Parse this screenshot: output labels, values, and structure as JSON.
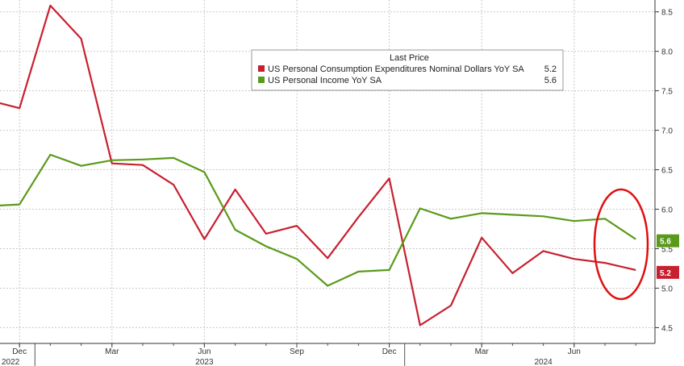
{
  "chart_data": {
    "type": "line",
    "x": [
      "2022-11",
      "2022-12",
      "2023-01",
      "2023-02",
      "2023-03",
      "2023-04",
      "2023-05",
      "2023-06",
      "2023-07",
      "2023-08",
      "2023-09",
      "2023-10",
      "2023-11",
      "2023-12",
      "2024-01",
      "2024-02",
      "2024-03",
      "2024-04",
      "2024-05",
      "2024-06",
      "2024-07",
      "2024-08"
    ],
    "x_tick_labels": [
      {
        "label": "Dec",
        "x": "2022-12"
      },
      {
        "label": "Mar",
        "x": "2023-03"
      },
      {
        "label": "Jun",
        "x": "2023-06"
      },
      {
        "label": "Sep",
        "x": "2023-09"
      },
      {
        "label": "Dec",
        "x": "2023-12"
      },
      {
        "label": "Mar",
        "x": "2024-03"
      },
      {
        "label": "Jun",
        "x": "2024-06"
      }
    ],
    "year_labels": [
      {
        "label": "2022",
        "x": "2022-11"
      },
      {
        "label": "2023",
        "x": "2023-06"
      },
      {
        "label": "2024",
        "x": "2024-05"
      }
    ],
    "y_ticks": [
      "8.5",
      "8.0",
      "7.5",
      "7.0",
      "6.5",
      "6.0",
      "5.5",
      "5.0",
      "4.5"
    ],
    "ylim": [
      4.3,
      8.65
    ],
    "axis_side": "right",
    "grid": true,
    "legend_title": "Last Price",
    "series": [
      {
        "name": "US Personal Consumption Expenditures Nominal Dollars YoY SA",
        "last": "5.2",
        "color": "#c8202f",
        "values": [
          7.38,
          7.28,
          8.58,
          8.16,
          6.58,
          6.56,
          6.31,
          5.62,
          6.25,
          5.69,
          5.79,
          5.38,
          5.9,
          6.39,
          4.53,
          4.78,
          5.64,
          5.19,
          5.47,
          5.37,
          5.32,
          5.23
        ]
      },
      {
        "name": "US Personal Income YoY SA",
        "last": "5.6",
        "color": "#5a9a1a",
        "values": [
          6.04,
          6.06,
          6.69,
          6.55,
          6.62,
          6.63,
          6.65,
          6.47,
          5.74,
          5.53,
          5.37,
          5.03,
          5.21,
          5.23,
          6.01,
          5.88,
          5.95,
          5.93,
          5.91,
          5.85,
          5.88,
          5.62
        ]
      }
    ],
    "annotation": "red ellipse around latest values",
    "legend_position": "top-center"
  }
}
